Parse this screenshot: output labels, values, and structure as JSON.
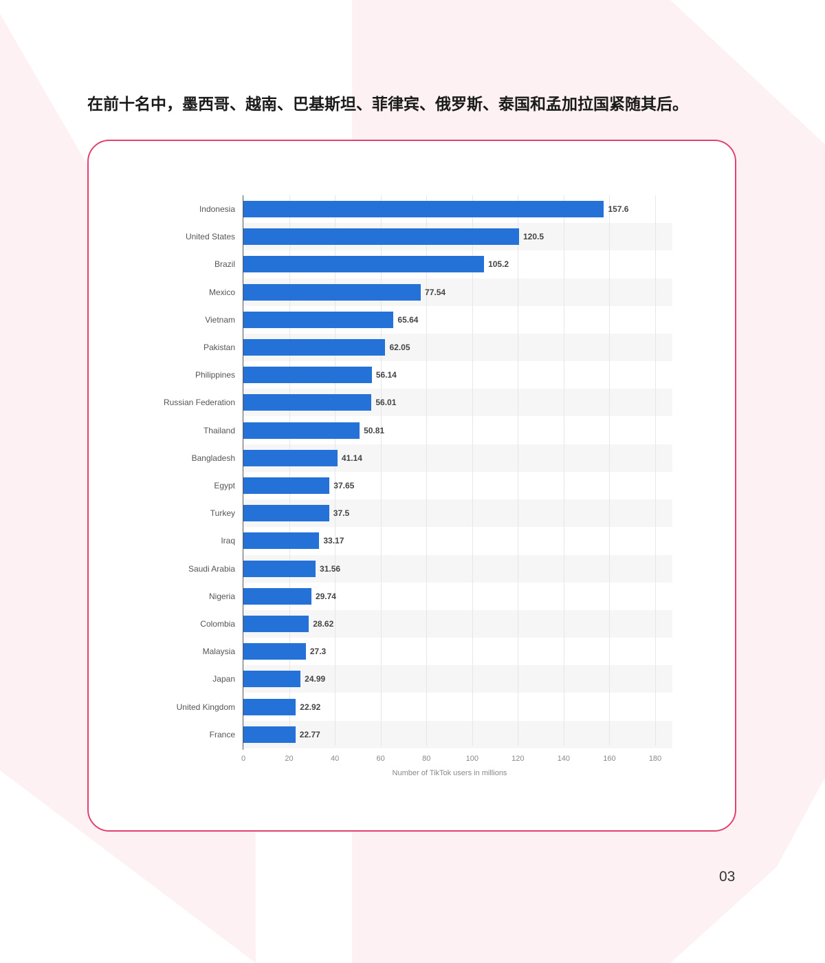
{
  "caption": "在前十名中，墨西哥、越南、巴基斯坦、菲律宾、俄罗斯、泰国和孟加拉国紧随其后。",
  "page_number": "03",
  "colors": {
    "bar": "#2471d8",
    "card_border": "#e0416e",
    "background_accent": "#fdf1f3"
  },
  "chart_data": {
    "type": "bar",
    "orientation": "horizontal",
    "title": "",
    "xlabel": "Number of TikTok users in millions",
    "ylabel": "",
    "xlim": [
      0,
      180
    ],
    "xticks": [
      0,
      20,
      40,
      60,
      80,
      100,
      120,
      140,
      160,
      180
    ],
    "grid": true,
    "legend": null,
    "categories": [
      "Indonesia",
      "United States",
      "Brazil",
      "Mexico",
      "Vietnam",
      "Pakistan",
      "Philippines",
      "Russian Federation",
      "Thailand",
      "Bangladesh",
      "Egypt",
      "Turkey",
      "Iraq",
      "Saudi Arabia",
      "Nigeria",
      "Colombia",
      "Malaysia",
      "Japan",
      "United Kingdom",
      "France"
    ],
    "values": [
      157.6,
      120.5,
      105.2,
      77.54,
      65.64,
      62.05,
      56.14,
      56.01,
      50.81,
      41.14,
      37.65,
      37.5,
      33.17,
      31.56,
      29.74,
      28.62,
      27.3,
      24.99,
      22.92,
      22.77
    ],
    "value_labels": [
      "157.6",
      "120.5",
      "105.2",
      "77.54",
      "65.64",
      "62.05",
      "56.14",
      "56.01",
      "50.81",
      "41.14",
      "37.65",
      "37.5",
      "33.17",
      "31.56",
      "29.74",
      "28.62",
      "27.3",
      "24.99",
      "22.92",
      "22.77"
    ]
  }
}
